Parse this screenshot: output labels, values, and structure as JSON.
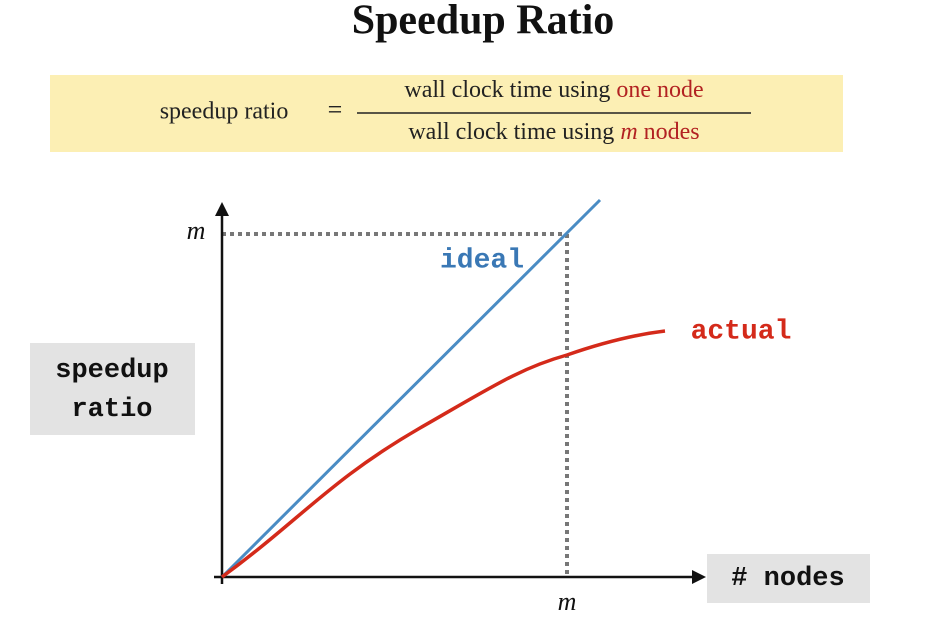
{
  "title": "Speedup Ratio",
  "formula": {
    "lhs": "speedup ratio",
    "equals": "=",
    "numerator": {
      "text": "wall clock time using",
      "highlight": "one node"
    },
    "denominator": {
      "text": "wall clock time using",
      "variable": "m",
      "highlight": "nodes"
    }
  },
  "diagram": {
    "y_axis_label": [
      "speedup",
      "ratio"
    ],
    "x_axis_label": "# nodes",
    "y_marker": "m",
    "x_marker": "m",
    "lines": [
      {
        "label": "ideal"
      },
      {
        "label": "actual"
      }
    ]
  }
}
